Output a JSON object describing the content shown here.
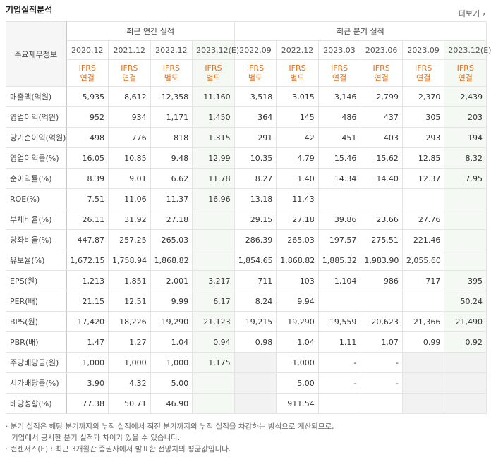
{
  "header": {
    "title": "기업실적분석",
    "more": "더보기"
  },
  "table": {
    "corner": "주요재무정보",
    "groups": [
      "최근 연간 실적",
      "최근 분기 실적"
    ],
    "periods": [
      "2020.12",
      "2021.12",
      "2022.12",
      "2023.12(E)",
      "2022.09",
      "2022.12",
      "2023.03",
      "2023.06",
      "2023.09",
      "2023.12(E)"
    ],
    "standards": [
      "IFRS",
      "IFRS",
      "IFRS",
      "IFRS",
      "IFRS",
      "IFRS",
      "IFRS",
      "IFRS",
      "IFRS",
      "IFRS"
    ],
    "bases": [
      "연결",
      "연결",
      "별도",
      "별도",
      "별도",
      "별도",
      "연결",
      "연결",
      "연결",
      "연결"
    ],
    "rows": [
      {
        "label": "매출액(억원)",
        "cells": [
          "5,935",
          "8,612",
          "12,358",
          "11,160",
          "3,518",
          "3,015",
          "3,146",
          "2,799",
          "2,370",
          "2,439"
        ]
      },
      {
        "label": "영업이익(억원)",
        "cells": [
          "952",
          "934",
          "1,171",
          "1,450",
          "364",
          "145",
          "486",
          "437",
          "305",
          "203"
        ]
      },
      {
        "label": "당기순이익(억원)",
        "cells": [
          "498",
          "776",
          "818",
          "1,315",
          "291",
          "42",
          "451",
          "403",
          "293",
          "194"
        ]
      },
      {
        "label": "영업이익률(%)",
        "cells": [
          "16.05",
          "10.85",
          "9.48",
          "12.99",
          "10.35",
          "4.79",
          "15.46",
          "15.62",
          "12.85",
          "8.32"
        ]
      },
      {
        "label": "순이익률(%)",
        "cells": [
          "8.39",
          "9.01",
          "6.62",
          "11.78",
          "8.27",
          "1.40",
          "14.34",
          "14.40",
          "12.37",
          "7.95"
        ]
      },
      {
        "label": "ROE(%)",
        "cells": [
          "7.51",
          "11.06",
          "11.37",
          "16.96",
          "13.18",
          "11.43",
          null,
          null,
          null,
          null
        ]
      },
      {
        "label": "부채비율(%)",
        "cells": [
          "26.11",
          "31.92",
          "27.18",
          null,
          "29.15",
          "27.18",
          "39.86",
          "23.66",
          "27.76",
          null
        ]
      },
      {
        "label": "당좌비율(%)",
        "cells": [
          "447.87",
          "257.25",
          "265.03",
          null,
          "286.39",
          "265.03",
          "197.57",
          "275.51",
          "221.46",
          null
        ]
      },
      {
        "label": "유보율(%)",
        "cells": [
          "1,672.15",
          "1,758.94",
          "1,868.82",
          null,
          "1,854.65",
          "1,868.82",
          "1,885.32",
          "1,983.90",
          "2,055.60",
          null
        ]
      },
      {
        "label": "EPS(원)",
        "cells": [
          "1,213",
          "1,851",
          "2,001",
          "3,217",
          "711",
          "103",
          "1,104",
          "986",
          "717",
          "395"
        ]
      },
      {
        "label": "PER(배)",
        "cells": [
          "21.15",
          "12.51",
          "9.99",
          "6.17",
          "8.24",
          "9.94",
          null,
          null,
          null,
          "50.24"
        ]
      },
      {
        "label": "BPS(원)",
        "cells": [
          "17,420",
          "18,226",
          "19,290",
          "21,123",
          "19,215",
          "19,290",
          "19,559",
          "20,623",
          "21,366",
          "21,490"
        ]
      },
      {
        "label": "PBR(배)",
        "cells": [
          "1.47",
          "1.27",
          "1.04",
          "0.94",
          "0.98",
          "1.04",
          "1.11",
          "1.07",
          "0.99",
          "0.92"
        ]
      },
      {
        "label": "주당배당금(원)",
        "cells": [
          "1,000",
          "1,000",
          "1,000",
          "1,175",
          null,
          "1,000",
          "-",
          "-",
          null,
          null
        ]
      },
      {
        "label": "시가배당률(%)",
        "cells": [
          "3.90",
          "4.32",
          "5.00",
          null,
          null,
          "5.00",
          "-",
          "-",
          null,
          null
        ]
      },
      {
        "label": "배당성향(%)",
        "cells": [
          "77.38",
          "50.71",
          "46.90",
          null,
          null,
          "911.54",
          null,
          null,
          null,
          null
        ]
      }
    ]
  },
  "notes": [
    "분기 실적은 해당 분기까지의 누적 실적에서 직전 분기까지의 누적 실적을 차감하는 방식으로 계산되므로,",
    "기업에서 공시한 분기 실적과 차이가 있을 수 있습니다.",
    "컨센서스(E) : 최근 3개월간 증권사에서 발표한 전망치의 평균값입니다."
  ]
}
